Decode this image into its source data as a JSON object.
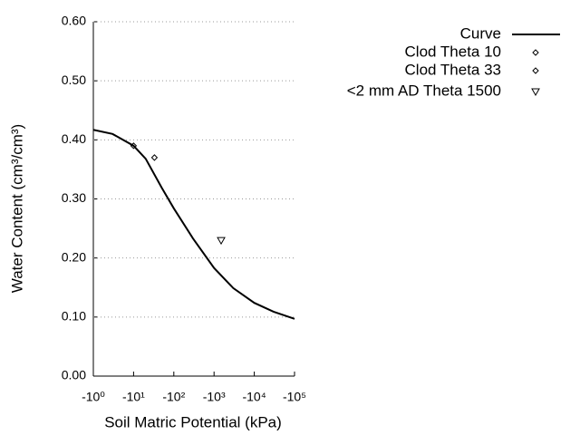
{
  "chart_data": {
    "type": "line",
    "xlabel": "Soil Matric Potential (kPa)",
    "ylabel": "Water Content (cm³/cm³)",
    "xlog": true,
    "xlim": [
      -1,
      -100000
    ],
    "xticks": [
      {
        "value": -1,
        "label": "-10⁰"
      },
      {
        "value": -10,
        "label": "-10¹"
      },
      {
        "value": -100,
        "label": "-10²"
      },
      {
        "value": -1000,
        "label": "-10³"
      },
      {
        "value": -10000,
        "label": "-10⁴"
      },
      {
        "value": -100000,
        "label": "-10⁵"
      }
    ],
    "ylim": [
      0,
      0.6
    ],
    "yticks": [
      {
        "value": 0,
        "label": "0.00"
      },
      {
        "value": 0.1,
        "label": "0.10"
      },
      {
        "value": 0.2,
        "label": "0.20"
      },
      {
        "value": 0.3,
        "label": "0.30"
      },
      {
        "value": 0.4,
        "label": "0.40"
      },
      {
        "value": 0.5,
        "label": "0.50"
      },
      {
        "value": 0.6,
        "label": "0.60"
      }
    ],
    "grid": true,
    "legend": "top-right",
    "series": [
      {
        "name": "Curve",
        "color": "#000000",
        "marker": "line",
        "x": [
          -1,
          -3,
          -10,
          -20,
          -50,
          -100,
          -300,
          -1000,
          -3000,
          -10000,
          -30000,
          -100000
        ],
        "values": [
          0.417,
          0.41,
          0.39,
          0.368,
          0.319,
          0.284,
          0.233,
          0.183,
          0.149,
          0.124,
          0.109,
          0.097
        ]
      },
      {
        "name": "Clod Theta 10",
        "color": "#000000",
        "marker": "diamond",
        "x": [
          -10
        ],
        "values": [
          0.39
        ]
      },
      {
        "name": "Clod Theta 33",
        "color": "#000000",
        "marker": "diamond",
        "x": [
          -33
        ],
        "values": [
          0.37
        ]
      },
      {
        "name": "<2 mm AD Theta 1500",
        "color": "#000000",
        "marker": "triangle-down",
        "x": [
          -1500
        ],
        "values": [
          0.23
        ]
      }
    ]
  }
}
